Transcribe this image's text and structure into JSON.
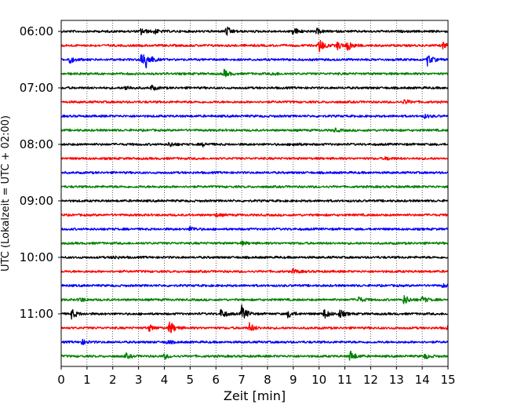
{
  "chart_data": {
    "type": "line",
    "subtype": "helicorder",
    "xlabel": "Zeit  [min]",
    "ylabel": "UTC (Lokalzeit = UTC + 02:00)",
    "xlim": [
      0,
      15
    ],
    "x_ticks": [
      0,
      1,
      2,
      3,
      4,
      5,
      6,
      7,
      8,
      9,
      10,
      11,
      12,
      13,
      14,
      15
    ],
    "y_tick_labels": [
      "06:00",
      "07:00",
      "08:00",
      "09:00",
      "10:00",
      "11:00"
    ],
    "y_tick_rows": [
      0,
      4,
      8,
      12,
      16,
      20
    ],
    "grid_x": true,
    "grid_style": "dotted",
    "trace_colors": [
      "#000000",
      "#ff0000",
      "#0000ff",
      "#008000"
    ],
    "rows": [
      {
        "time": "06:00",
        "color": "#000000",
        "events": [
          [
            3.1,
            4
          ],
          [
            3.6,
            3
          ],
          [
            6.4,
            6
          ],
          [
            9.0,
            5
          ],
          [
            9.9,
            3
          ]
        ]
      },
      {
        "time": "06:15",
        "color": "#ff0000",
        "events": [
          [
            10.0,
            9
          ],
          [
            10.7,
            5
          ],
          [
            11.1,
            7
          ],
          [
            14.8,
            4
          ]
        ]
      },
      {
        "time": "06:30",
        "color": "#0000ff",
        "events": [
          [
            0.3,
            5
          ],
          [
            3.1,
            10
          ],
          [
            3.3,
            8
          ],
          [
            14.2,
            7
          ]
        ]
      },
      {
        "time": "06:45",
        "color": "#008000",
        "events": [
          [
            6.3,
            5
          ],
          [
            8.2,
            2
          ]
        ]
      },
      {
        "time": "07:00",
        "color": "#000000",
        "events": [
          [
            2.5,
            3
          ],
          [
            3.5,
            3
          ]
        ]
      },
      {
        "time": "07:15",
        "color": "#ff0000",
        "events": [
          [
            13.3,
            3
          ]
        ]
      },
      {
        "time": "07:30",
        "color": "#0000ff",
        "events": [
          [
            14.1,
            2
          ]
        ]
      },
      {
        "time": "07:45",
        "color": "#008000",
        "events": [
          [
            10.6,
            2
          ]
        ]
      },
      {
        "time": "08:00",
        "color": "#000000",
        "events": [
          [
            4.2,
            3
          ],
          [
            5.5,
            2
          ],
          [
            9.0,
            2
          ]
        ]
      },
      {
        "time": "08:15",
        "color": "#ff0000",
        "events": [
          [
            12.6,
            2
          ]
        ]
      },
      {
        "time": "08:30",
        "color": "#0000ff",
        "events": []
      },
      {
        "time": "08:45",
        "color": "#008000",
        "events": []
      },
      {
        "time": "09:00",
        "color": "#000000",
        "events": []
      },
      {
        "time": "09:15",
        "color": "#ff0000",
        "events": [
          [
            6.0,
            2
          ]
        ]
      },
      {
        "time": "09:30",
        "color": "#0000ff",
        "events": [
          [
            5.0,
            3
          ]
        ]
      },
      {
        "time": "09:45",
        "color": "#008000",
        "events": [
          [
            7.0,
            2
          ]
        ]
      },
      {
        "time": "10:00",
        "color": "#000000",
        "events": [
          [
            2.0,
            2
          ]
        ]
      },
      {
        "time": "10:15",
        "color": "#ff0000",
        "events": [
          [
            9.0,
            3
          ]
        ]
      },
      {
        "time": "10:30",
        "color": "#0000ff",
        "events": [
          [
            14.8,
            2
          ]
        ]
      },
      {
        "time": "10:45",
        "color": "#008000",
        "events": [
          [
            0.7,
            3
          ],
          [
            11.5,
            4
          ],
          [
            13.3,
            6
          ],
          [
            14.0,
            4
          ]
        ]
      },
      {
        "time": "11:00",
        "color": "#000000",
        "events": [
          [
            0.4,
            6
          ],
          [
            6.2,
            6
          ],
          [
            7.0,
            10
          ],
          [
            8.8,
            5
          ],
          [
            10.2,
            6
          ],
          [
            10.8,
            5
          ]
        ]
      },
      {
        "time": "11:15",
        "color": "#ff0000",
        "events": [
          [
            4.2,
            9
          ],
          [
            3.4,
            4
          ],
          [
            7.3,
            6
          ],
          [
            15.0,
            4
          ]
        ]
      },
      {
        "time": "11:30",
        "color": "#0000ff",
        "events": [
          [
            0.8,
            3
          ],
          [
            4.1,
            2
          ]
        ]
      },
      {
        "time": "11:45",
        "color": "#008000",
        "events": [
          [
            2.5,
            3
          ],
          [
            4.0,
            3
          ],
          [
            11.2,
            7
          ],
          [
            14.1,
            3
          ]
        ]
      }
    ]
  }
}
